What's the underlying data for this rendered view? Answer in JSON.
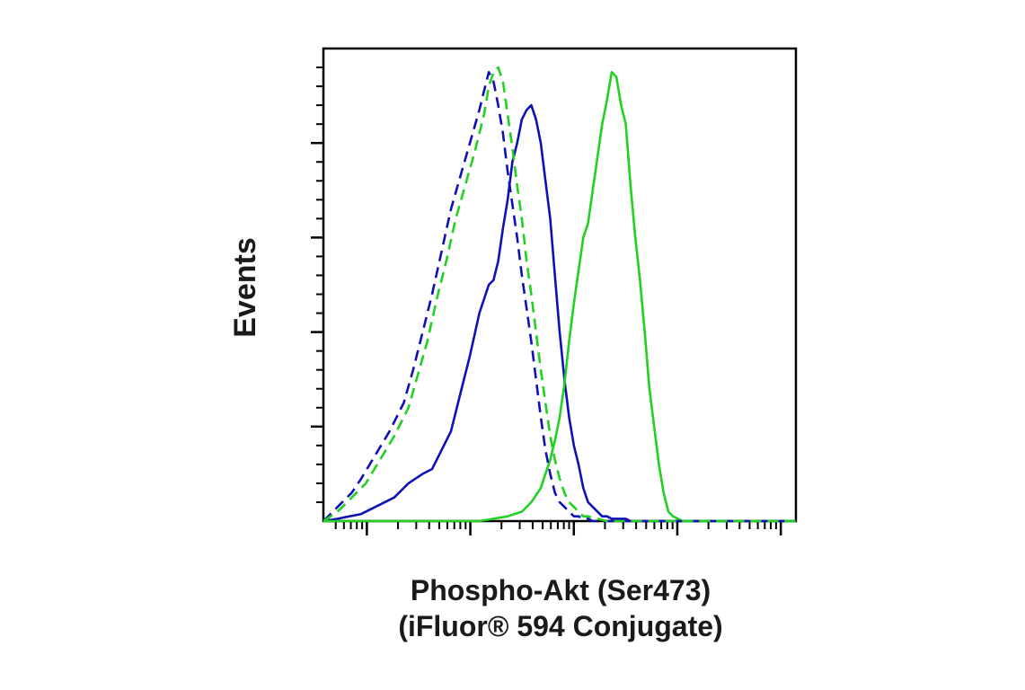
{
  "chart_data": {
    "type": "line",
    "title": "",
    "xlabel_line1": "Phospho-Akt (Ser473)",
    "xlabel_line2": "(iFluor® 594 Conjugate)",
    "ylabel": "Events",
    "x_scale": "log",
    "xlim": [
      0,
      100
    ],
    "ylim": [
      0,
      100
    ],
    "grid": false,
    "legend": "none",
    "colors": {
      "axis": "#000000",
      "blue": "#1010b8",
      "green": "#22d022",
      "text": "#1a1a1a"
    },
    "series": [
      {
        "color": "#1010b8",
        "dash": false,
        "x": [
          0,
          3,
          8,
          11,
          15,
          18,
          21,
          23,
          25,
          27,
          29,
          31,
          33,
          35,
          36,
          37,
          38,
          39,
          40,
          41,
          42,
          43,
          44,
          45,
          46,
          47,
          48,
          49,
          50,
          51,
          52,
          53,
          54,
          55,
          56,
          57,
          58,
          59,
          60,
          61,
          62,
          63,
          64,
          65,
          66,
          70,
          75,
          100
        ],
        "y": [
          0,
          0.5,
          1.5,
          3,
          5,
          8,
          10,
          11,
          15,
          19,
          27,
          35,
          44,
          50,
          51,
          55,
          62,
          68,
          76,
          80,
          85,
          87,
          88,
          85,
          80,
          72,
          64,
          52,
          40,
          30,
          22,
          16,
          12,
          7,
          4,
          3,
          2,
          1,
          1,
          0.5,
          0.5,
          0.5,
          0.5,
          0,
          0,
          0,
          0,
          0
        ]
      },
      {
        "color": "#22d022",
        "dash": false,
        "x": [
          0,
          33,
          36,
          39,
          42,
          44,
          46,
          47,
          48,
          49,
          50,
          51,
          52,
          53,
          54,
          55,
          56,
          57,
          58,
          59,
          60,
          61,
          62,
          63,
          64,
          65,
          66,
          67,
          68,
          69,
          70,
          71,
          72,
          73,
          74,
          76,
          80,
          100
        ],
        "y": [
          0,
          0,
          0.5,
          1,
          2,
          4,
          7,
          10,
          13,
          17,
          22,
          29,
          38,
          46,
          53,
          60,
          63,
          70,
          77,
          84,
          89,
          95,
          94,
          88,
          84,
          71,
          60,
          51,
          40,
          28,
          20,
          12,
          6,
          2,
          1,
          0,
          0,
          0
        ]
      },
      {
        "color": "#1010b8",
        "dash": true,
        "x": [
          0,
          3,
          6,
          8,
          11,
          14,
          17,
          19,
          21,
          23,
          25,
          27,
          29,
          31,
          33,
          34,
          35,
          36,
          37,
          38,
          39,
          40,
          41,
          42,
          43,
          44,
          45,
          46,
          47,
          48,
          49,
          50,
          51,
          52,
          53,
          54,
          55,
          56,
          57,
          58,
          60,
          63,
          68,
          100
        ],
        "y": [
          0,
          3,
          6,
          9,
          14,
          19,
          25,
          32,
          40,
          48,
          57,
          66,
          73,
          80,
          87,
          91,
          95,
          93,
          88,
          82,
          74,
          67,
          60,
          52,
          45,
          38,
          30,
          22,
          15,
          10,
          6,
          4,
          3,
          2,
          1,
          1,
          0.5,
          0.5,
          0,
          0,
          0,
          0,
          0,
          0
        ]
      },
      {
        "color": "#22d022",
        "dash": true,
        "x": [
          0,
          3,
          6,
          9,
          12,
          15,
          18,
          20,
          22,
          24,
          26,
          28,
          30,
          32,
          34,
          35,
          36,
          37,
          38,
          39,
          40,
          41,
          42,
          43,
          44,
          45,
          46,
          47,
          48,
          49,
          50,
          51,
          52,
          53,
          54,
          55,
          56,
          58,
          60,
          63,
          68,
          100
        ],
        "y": [
          0,
          2,
          5,
          8,
          13,
          18,
          24,
          31,
          38,
          47,
          55,
          64,
          71,
          78,
          86,
          92,
          95,
          96,
          93,
          86,
          79,
          71,
          64,
          55,
          48,
          40,
          32,
          25,
          18,
          13,
          9,
          6,
          4,
          3,
          2,
          1,
          1,
          0.5,
          0,
          0,
          0,
          0
        ]
      }
    ]
  }
}
